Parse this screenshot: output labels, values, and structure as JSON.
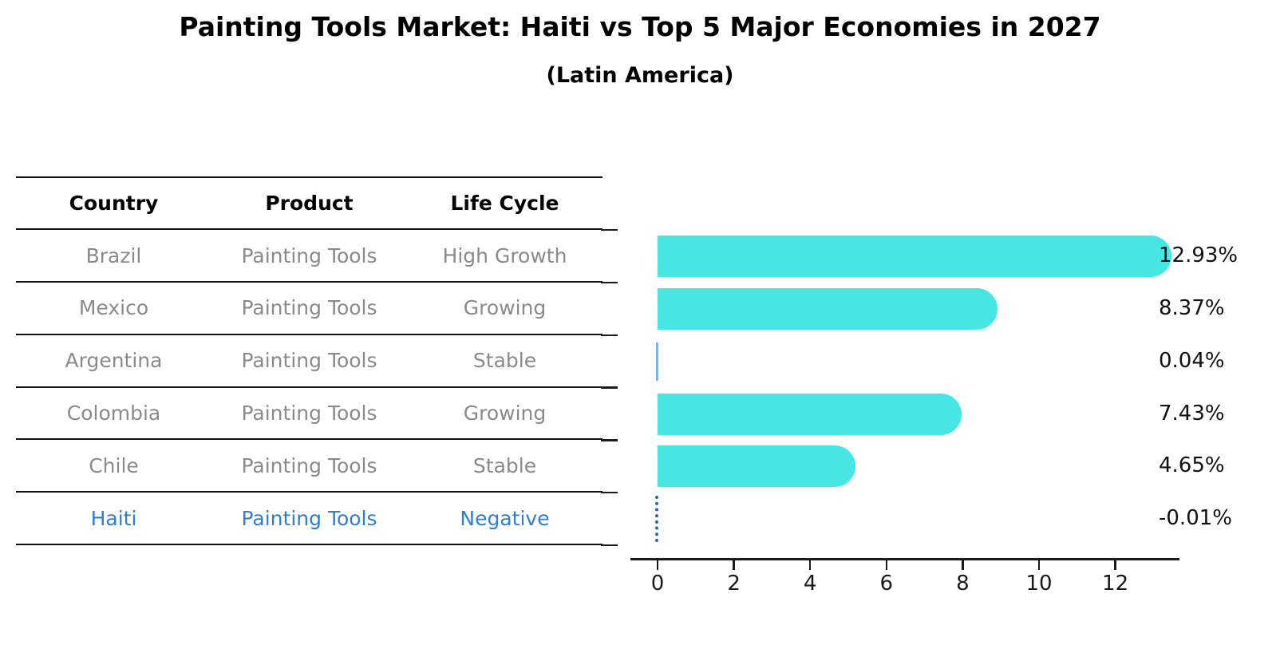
{
  "title": "Painting Tools Market: Haiti vs Top 5 Major Economies in 2027",
  "subtitle": "(Latin America)",
  "table": {
    "headers": [
      "Country",
      "Product",
      "Life Cycle"
    ],
    "rows": [
      {
        "country": "Brazil",
        "product": "Painting Tools",
        "life_cycle": "High Growth",
        "highlight": false
      },
      {
        "country": "Mexico",
        "product": "Painting Tools",
        "life_cycle": "Growing",
        "highlight": false
      },
      {
        "country": "Argentina",
        "product": "Painting Tools",
        "life_cycle": "Stable",
        "highlight": false
      },
      {
        "country": "Colombia",
        "product": "Painting Tools",
        "life_cycle": "Growing",
        "highlight": false
      },
      {
        "country": "Chile",
        "product": "Painting Tools",
        "life_cycle": "Stable",
        "highlight": false
      },
      {
        "country": "Haiti",
        "product": "Painting Tools",
        "life_cycle": "Negative",
        "highlight": true
      }
    ]
  },
  "chart_data": {
    "type": "bar",
    "orientation": "horizontal",
    "title": "Painting Tools Market: Haiti vs Top 5 Major Economies in 2027",
    "subtitle": "(Latin America)",
    "categories": [
      "Brazil",
      "Mexico",
      "Argentina",
      "Colombia",
      "Chile",
      "Haiti"
    ],
    "values": [
      12.93,
      8.37,
      0.04,
      7.43,
      4.65,
      -0.01
    ],
    "value_labels": [
      "12.93%",
      "8.37%",
      "0.04%",
      "7.43%",
      "4.65%",
      "-0.01%"
    ],
    "xlabel": "",
    "ylabel": "",
    "xlim": [
      0,
      13.6
    ],
    "xtick_labels": [
      "0",
      "2",
      "4",
      "6",
      "8",
      "10",
      "12"
    ],
    "xtick_values": [
      0,
      2,
      4,
      6,
      8,
      10,
      12
    ],
    "grid": false,
    "legend": false,
    "bar_style": "rounded-right-cap",
    "special_markers": [
      {
        "category": "Argentina",
        "style": "thin-solid-line",
        "color": "#82b4e2"
      },
      {
        "category": "Haiti",
        "style": "dotted-vertical-line",
        "color": "#2268ad"
      }
    ]
  },
  "colors": {
    "bar": "#47e6e2",
    "table_text": "#8a8a8a",
    "header_text": "#000000",
    "highlight_text": "#2e7fd1",
    "tiny_bar": "#82b4e2",
    "negative_dots": "#2268ad",
    "axis": "#1a1a1a"
  }
}
